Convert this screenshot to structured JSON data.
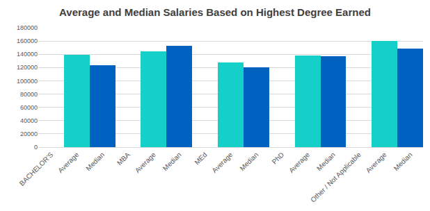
{
  "chart_data": {
    "type": "bar",
    "title": "Average and Median Salaries Based on Highest Degree Earned",
    "categories": [
      "BACHELOR'S",
      "Average",
      "Median",
      "MBA",
      "Average",
      "Median",
      "MEd",
      "Average",
      "Median",
      "PhD",
      "Average",
      "Median",
      "Other / Not Applicable",
      "Average",
      "Median"
    ],
    "values": [
      null,
      139000,
      123000,
      null,
      144000,
      153000,
      null,
      128000,
      120000,
      null,
      138000,
      137000,
      null,
      160000,
      149000
    ],
    "colors": [
      null,
      "#14d0c8",
      "#0062c0",
      null,
      "#14d0c8",
      "#0062c0",
      null,
      "#14d0c8",
      "#0062c0",
      null,
      "#14d0c8",
      "#0062c0",
      null,
      "#14d0c8",
      "#0062c0"
    ],
    "ylim": [
      0,
      180000
    ],
    "yticks": [
      0,
      20000,
      40000,
      60000,
      80000,
      100000,
      120000,
      140000,
      160000,
      180000
    ],
    "grid": true
  }
}
